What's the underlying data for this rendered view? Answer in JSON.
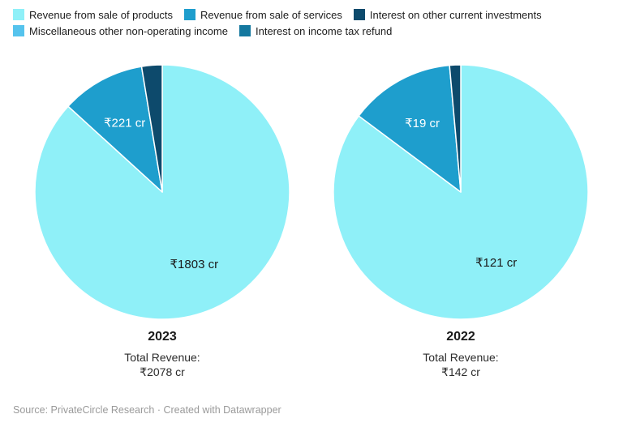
{
  "legend": {
    "items": [
      {
        "label": "Revenue from sale of products",
        "color": "#8FF0F8",
        "icon": "swatch-square"
      },
      {
        "label": "Revenue from sale of services",
        "color": "#1E9ECD",
        "icon": "swatch-square"
      },
      {
        "label": "Interest on other current investments",
        "color": "#0D4A6C",
        "icon": "swatch-square"
      },
      {
        "label": "Miscellaneous other non-operating income",
        "color": "#55C3ED",
        "icon": "swatch-square"
      },
      {
        "label": "Interest on income tax refund",
        "color": "#14789F",
        "icon": "swatch-square"
      }
    ]
  },
  "chart_data": [
    {
      "type": "pie",
      "year": "2023",
      "total_label": "Total Revenue:",
      "total_value": "₹2078 cr",
      "total": 2078,
      "legend_position": "top",
      "slices": [
        {
          "name": "Revenue from sale of products",
          "value": 1803,
          "label": "₹1803 cr",
          "color": "#8FF0F8",
          "label_color": "#1a1a1a"
        },
        {
          "name": "Revenue from sale of services",
          "value": 221,
          "label": "₹221 cr",
          "color": "#1E9ECD",
          "label_color": "#ffffff"
        },
        {
          "name": "Interest on other current investments",
          "value": 54,
          "label": "",
          "color": "#0D4A6C",
          "label_color": "#ffffff"
        }
      ]
    },
    {
      "type": "pie",
      "year": "2022",
      "total_label": "Total Revenue:",
      "total_value": "₹142 cr",
      "total": 142,
      "legend_position": "top",
      "slices": [
        {
          "name": "Revenue from sale of products",
          "value": 121,
          "label": "₹121 cr",
          "color": "#8FF0F8",
          "label_color": "#1a1a1a"
        },
        {
          "name": "Revenue from sale of services",
          "value": 19,
          "label": "₹19 cr",
          "color": "#1E9ECD",
          "label_color": "#ffffff"
        },
        {
          "name": "Interest on other current investments",
          "value": 2,
          "label": "",
          "color": "#0D4A6C",
          "label_color": "#ffffff"
        }
      ]
    }
  ],
  "footer": {
    "source": "Source: PrivateCircle Research · Created with Datawrapper"
  }
}
